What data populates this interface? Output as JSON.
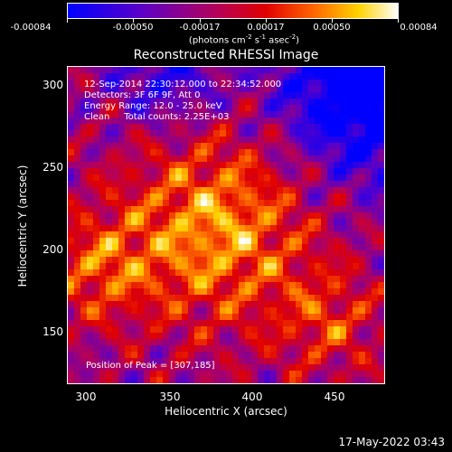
{
  "colorbar": {
    "tick_labels": [
      "-0.00084",
      "-0.00050",
      "-0.00017",
      "0.00017",
      "0.00050",
      "0.00084"
    ],
    "units_prefix": "(photons cm",
    "units_exp1": "-2",
    "units_mid1": " s",
    "units_exp2": "-1",
    "units_mid2": " asec",
    "units_exp3": "-2",
    "units_suffix": ")",
    "min": -0.00084,
    "max": 0.00084
  },
  "title": "Reconstructed RHESSI Image",
  "annotation": {
    "time": "12-Sep-2014 22:30:12.000 to 22:34:52.000",
    "detectors": "Detectors: 3F 6F 9F, Att 0",
    "energy": "Energy Range: 12.0 - 25.0 keV",
    "method": "Clean     Total counts: 2.25E+03",
    "peak": "Position of Peak = [307,185]"
  },
  "axes": {
    "x_label": "Heliocentric X (arcsec)",
    "y_label": "Heliocentric Y (arcsec)",
    "x_ticks": [
      "300",
      "350",
      "400",
      "450"
    ],
    "y_ticks": [
      "150",
      "200",
      "250",
      "300"
    ],
    "x_range": [
      288,
      480
    ],
    "y_range": [
      115,
      310
    ]
  },
  "timestamp": "17-May-2022 03:43",
  "colors": {
    "background": "#000000",
    "foreground": "#ffffff"
  }
}
